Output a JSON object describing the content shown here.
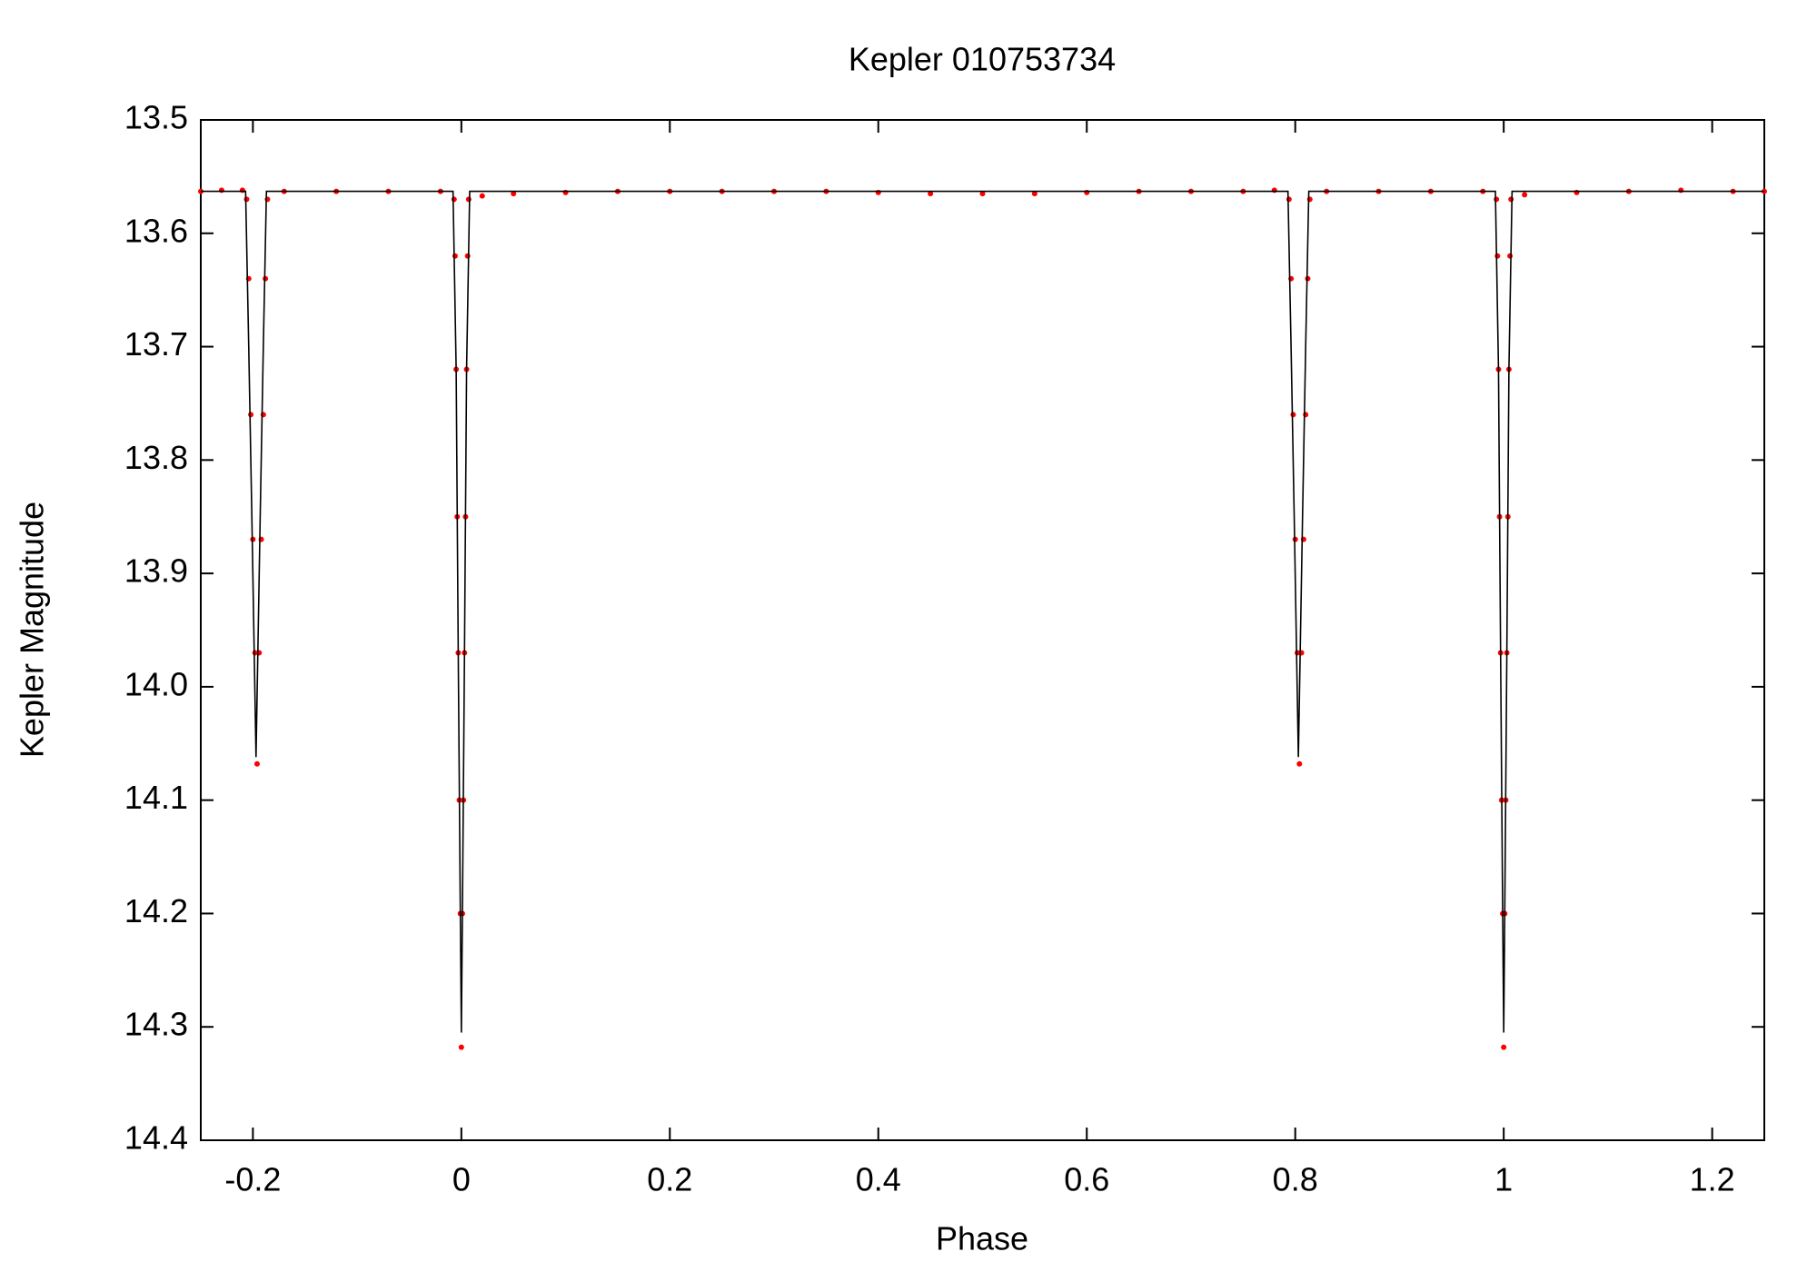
{
  "chart_data": {
    "type": "scatter",
    "title": "Kepler 010753734",
    "x_label": "Phase",
    "y_label": "Kepler Magnitude",
    "xlim": [
      -0.25,
      1.25
    ],
    "xticks": [
      -0.2,
      0,
      0.2,
      0.4,
      0.6,
      0.8,
      1,
      1.2
    ],
    "ylim": [
      13.5,
      14.4
    ],
    "y_reversed": true,
    "yticks": [
      13.5,
      13.6,
      13.7,
      13.8,
      13.9,
      {
        "value": 14,
        "label": "14.0"
      },
      14.1,
      14.2,
      14.3,
      14.4
    ],
    "series": [
      {
        "style": "points",
        "color": "#ff0000",
        "x": [
          -0.25,
          -0.23,
          -0.21,
          -0.206,
          -0.204,
          -0.202,
          -0.2,
          -0.198,
          -0.196,
          -0.194,
          -0.192,
          -0.19,
          -0.188,
          -0.186,
          -0.17,
          -0.12,
          -0.07,
          -0.02,
          -0.007,
          -0.006,
          -0.005,
          -0.004,
          -0.003,
          -0.002,
          -0.001,
          0,
          0.001,
          0.002,
          0.003,
          0.004,
          0.005,
          0.006,
          0.007,
          0.02,
          0.05,
          0.1,
          0.15,
          0.2,
          0.25,
          0.3,
          0.35,
          0.4,
          0.45,
          0.5,
          0.55,
          0.6,
          0.65,
          0.7,
          0.75,
          0.78,
          0.794,
          0.796,
          0.798,
          0.8,
          0.802,
          0.804,
          0.806,
          0.808,
          0.81,
          0.812,
          0.814,
          0.83,
          0.88,
          0.93,
          0.98,
          0.993,
          0.994,
          0.995,
          0.996,
          0.997,
          0.998,
          0.999,
          1,
          1.001,
          1.002,
          1.003,
          1.004,
          1.005,
          1.006,
          1.007,
          1.02,
          1.07,
          1.12,
          1.17,
          1.22,
          1.25
        ],
        "values": [
          13.563,
          13.562,
          13.562,
          13.57,
          13.64,
          13.76,
          13.87,
          13.97,
          14.068,
          13.97,
          13.87,
          13.76,
          13.64,
          13.57,
          13.563,
          13.563,
          13.563,
          13.563,
          13.57,
          13.62,
          13.72,
          13.85,
          13.97,
          14.1,
          14.2,
          14.318,
          14.2,
          14.1,
          13.97,
          13.85,
          13.72,
          13.62,
          13.57,
          13.567,
          13.565,
          13.564,
          13.563,
          13.563,
          13.563,
          13.563,
          13.563,
          13.564,
          13.565,
          13.565,
          13.565,
          13.564,
          13.563,
          13.563,
          13.563,
          13.562,
          13.57,
          13.64,
          13.76,
          13.87,
          13.97,
          14.068,
          13.97,
          13.87,
          13.76,
          13.64,
          13.57,
          13.563,
          13.563,
          13.563,
          13.563,
          13.57,
          13.62,
          13.72,
          13.85,
          13.97,
          14.1,
          14.2,
          14.318,
          14.2,
          14.1,
          13.97,
          13.85,
          13.72,
          13.62,
          13.57,
          13.566,
          13.564,
          13.563,
          13.562,
          13.563,
          13.563
        ]
      },
      {
        "style": "line",
        "color": "#000000",
        "x": [
          -0.25,
          -0.207,
          -0.204,
          -0.201,
          -0.197,
          -0.193,
          -0.19,
          -0.187,
          -0.008,
          -0.005,
          -0.003,
          -0.001,
          0,
          0.001,
          0.003,
          0.005,
          0.008,
          0.793,
          0.796,
          0.799,
          0.803,
          0.807,
          0.81,
          0.813,
          0.992,
          0.995,
          0.997,
          0.999,
          1,
          1.001,
          1.003,
          1.005,
          1.008,
          1.25
        ],
        "values": [
          13.563,
          13.563,
          13.7,
          13.85,
          14.062,
          13.85,
          13.7,
          13.563,
          13.563,
          13.72,
          13.97,
          14.2,
          14.305,
          14.2,
          13.97,
          13.72,
          13.563,
          13.563,
          13.7,
          13.85,
          14.062,
          13.85,
          13.7,
          13.563,
          13.563,
          13.72,
          13.97,
          14.2,
          14.305,
          14.2,
          13.97,
          13.72,
          13.563,
          13.563
        ]
      }
    ]
  }
}
